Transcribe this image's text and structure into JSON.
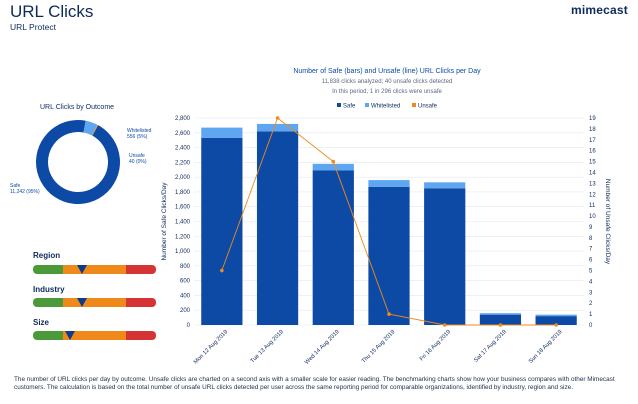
{
  "header": {
    "title": "URL Clicks",
    "subtitle": "URL Protect",
    "logo_text": "mimecast"
  },
  "donut": {
    "title": "URL Clicks by Outcome",
    "segments": [
      {
        "name": "Safe",
        "value": 11242,
        "label": "Safe",
        "detail": "11,242 (95%)",
        "color": "#0d4aa6"
      },
      {
        "name": "Whitelisted",
        "value": 556,
        "label": "Whitelisted",
        "detail": "556 (5%)",
        "color": "#5ea6f0"
      },
      {
        "name": "Unsafe",
        "value": 40,
        "label": "Unsafe",
        "detail": "40 (0%)",
        "color": "#ef8a1a"
      }
    ]
  },
  "benchmarks": [
    {
      "label": "Region",
      "marker": 0.4
    },
    {
      "label": "Industry",
      "marker": 0.4
    },
    {
      "label": "Size",
      "marker": 0.3
    }
  ],
  "chart": {
    "title": "Number of Safe (bars) and Unsafe (line) URL Clicks per Day",
    "subtitle1": "11,838 clicks analyzed; 40 unsafe clicks detected",
    "subtitle2": "In this period, 1 in 296 clicks were unsafe",
    "legend": [
      "Safe",
      "Whitelisted",
      "Unsafe"
    ],
    "colors": {
      "safe": "#0d4aa6",
      "whitelisted": "#5ea6f0",
      "unsafe": "#ef8a1a"
    }
  },
  "chart_data": {
    "type": "bar",
    "title": "Number of Safe (bars) and Unsafe (line) URL Clicks per Day",
    "categories": [
      "Mon 12 Aug 2019",
      "Tue 13 Aug 2019",
      "Wed 14 Aug 2019",
      "Thu 15 Aug 2019",
      "Fri 16 Aug 2019",
      "Sat 17 Aug 2019",
      "Sun 18 Aug 2019"
    ],
    "series": [
      {
        "name": "Safe",
        "type": "bar",
        "axis": "left",
        "values": [
          2530,
          2620,
          2090,
          1870,
          1850,
          140,
          120
        ]
      },
      {
        "name": "Whitelisted",
        "type": "bar",
        "axis": "left",
        "values": [
          140,
          100,
          90,
          90,
          80,
          20,
          20
        ]
      },
      {
        "name": "Unsafe",
        "type": "line",
        "axis": "right",
        "values": [
          5,
          19,
          15,
          1,
          0,
          0,
          0
        ]
      }
    ],
    "ylabel": "Number of Safe Clicks/Day",
    "y2label": "Number of Unsafe Clicks/Day",
    "ylim": [
      0,
      2800
    ],
    "y2lim": [
      0,
      19
    ],
    "yticks": [
      0,
      200,
      400,
      600,
      800,
      1000,
      1200,
      1400,
      1600,
      1800,
      2000,
      2200,
      2400,
      2600,
      2800
    ],
    "ytick_labels": [
      "0",
      "200",
      "400",
      "600",
      "800",
      "1,000",
      "1,200",
      "1,400",
      "1,600",
      "1,800",
      "2,000",
      "2,200",
      "2,400",
      "2,600",
      "2,800"
    ],
    "y2ticks": [
      "0",
      "1",
      "2",
      "3",
      "4",
      "5",
      "6",
      "7",
      "8",
      "9",
      "10",
      "11",
      "12",
      "13",
      "14",
      "15",
      "16",
      "17",
      "18",
      "19"
    ]
  },
  "footer": {
    "text": "The number of URL clicks per day by outcome. Unsafe clicks are charted on a second axis with a smaller scale for easier reading. The benchmarking charts show how your business compares with other Mimecast customers. The calculation is based on the total number of unsafe URL clicks detected per user across the same reporting period for comparable organizations, identified by industry, region and size."
  }
}
